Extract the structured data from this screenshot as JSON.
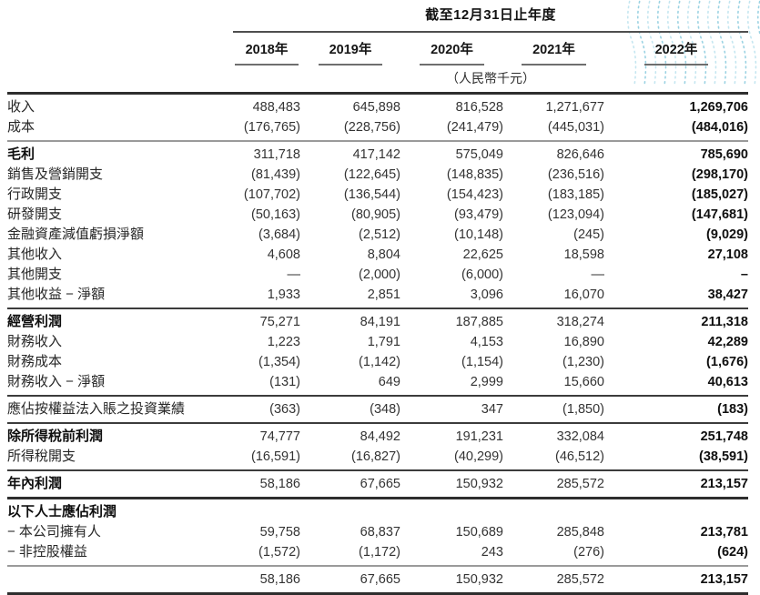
{
  "decor": {
    "name": "dotted-wave-pattern",
    "color": "#9ad2e2",
    "color_alt": "#c4e6f0"
  },
  "header": {
    "period_title": "截至12月31日止年度",
    "years": [
      "2018年",
      "2019年",
      "2020年",
      "2021年",
      "2022年"
    ],
    "unit_note": "（人民幣千元）"
  },
  "table": {
    "rows": [
      {
        "label": "收入",
        "bold": false,
        "divider": "none",
        "values": [
          "488,483",
          "645,898",
          "816,528",
          "1,271,677",
          "1,269,706"
        ]
      },
      {
        "label": "成本",
        "bold": false,
        "divider": "gray",
        "values": [
          "(176,765)",
          "(228,756)",
          "(241,479)",
          "(445,031)",
          "(484,016)"
        ]
      },
      {
        "label": "毛利",
        "bold": true,
        "divider": "none",
        "values": [
          "311,718",
          "417,142",
          "575,049",
          "826,646",
          "785,690"
        ]
      },
      {
        "label": "銷售及營銷開支",
        "bold": false,
        "divider": "none",
        "values": [
          "(81,439)",
          "(122,645)",
          "(148,835)",
          "(236,516)",
          "(298,170)"
        ]
      },
      {
        "label": "行政開支",
        "bold": false,
        "divider": "none",
        "values": [
          "(107,702)",
          "(136,544)",
          "(154,423)",
          "(183,185)",
          "(185,027)"
        ]
      },
      {
        "label": "研發開支",
        "bold": false,
        "divider": "none",
        "values": [
          "(50,163)",
          "(80,905)",
          "(93,479)",
          "(123,094)",
          "(147,681)"
        ]
      },
      {
        "label": "金融資產減值虧損淨額",
        "bold": false,
        "divider": "none",
        "values": [
          "(3,684)",
          "(2,512)",
          "(10,148)",
          "(245)",
          "(9,029)"
        ]
      },
      {
        "label": "其他收入",
        "bold": false,
        "divider": "none",
        "values": [
          "4,608",
          "8,804",
          "22,625",
          "18,598",
          "27,108"
        ]
      },
      {
        "label": "其他開支",
        "bold": false,
        "divider": "none",
        "values": [
          "—",
          "(2,000)",
          "(6,000)",
          "—",
          "–"
        ]
      },
      {
        "label": "其他收益 − 淨額",
        "bold": false,
        "divider": "dark",
        "values": [
          "1,933",
          "2,851",
          "3,096",
          "16,070",
          "38,427"
        ]
      },
      {
        "label": "經營利潤",
        "bold": true,
        "divider": "none",
        "values": [
          "75,271",
          "84,191",
          "187,885",
          "318,274",
          "211,318"
        ]
      },
      {
        "label": "財務收入",
        "bold": false,
        "divider": "none",
        "values": [
          "1,223",
          "1,791",
          "4,153",
          "16,890",
          "42,289"
        ]
      },
      {
        "label": "財務成本",
        "bold": false,
        "divider": "none",
        "values": [
          "(1,354)",
          "(1,142)",
          "(1,154)",
          "(1,230)",
          "(1,676)"
        ]
      },
      {
        "label": "財務收入 − 淨額",
        "bold": false,
        "divider": "dark",
        "values": [
          "(131)",
          "649",
          "2,999",
          "15,660",
          "40,613"
        ]
      },
      {
        "label": "應佔按權益法入賬之投資業績",
        "bold": false,
        "divider": "dark",
        "values": [
          "(363)",
          "(348)",
          "347",
          "(1,850)",
          "(183)"
        ]
      },
      {
        "label": "除所得稅前利潤",
        "bold": true,
        "divider": "none",
        "values": [
          "74,777",
          "84,492",
          "191,231",
          "332,084",
          "251,748"
        ]
      },
      {
        "label": "所得稅開支",
        "bold": false,
        "divider": "dark",
        "values": [
          "(16,591)",
          "(16,827)",
          "(40,299)",
          "(46,512)",
          "(38,591)"
        ]
      },
      {
        "label": "年內利潤",
        "bold": true,
        "divider": "thick",
        "values": [
          "58,186",
          "67,665",
          "150,932",
          "285,572",
          "213,157"
        ]
      },
      {
        "label": "以下人士應佔利潤",
        "bold": true,
        "divider": "none",
        "values": [
          "",
          "",
          "",
          "",
          ""
        ]
      },
      {
        "label": "− 本公司擁有人",
        "bold": false,
        "divider": "none",
        "values": [
          "59,758",
          "68,837",
          "150,689",
          "285,848",
          "213,781"
        ]
      },
      {
        "label": "− 非控股權益",
        "bold": false,
        "divider": "gray",
        "values": [
          "(1,572)",
          "(1,172)",
          "243",
          "(276)",
          "(624)"
        ]
      },
      {
        "label": "",
        "bold": false,
        "divider": "thick",
        "values": [
          "58,186",
          "67,665",
          "150,932",
          "285,572",
          "213,157"
        ]
      }
    ]
  }
}
